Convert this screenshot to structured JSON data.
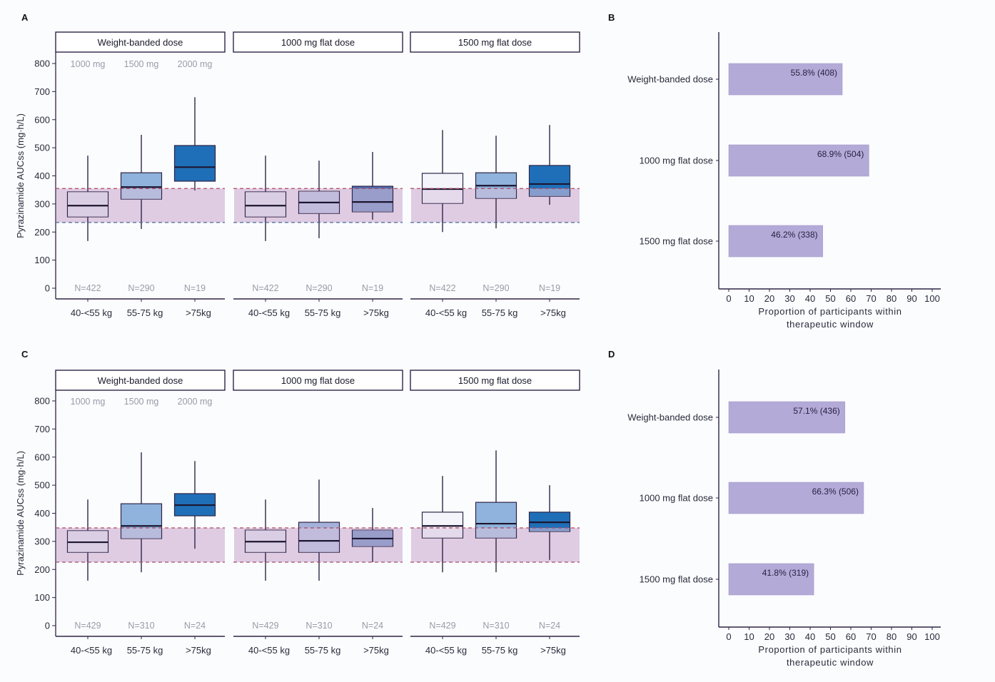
{
  "chart_data": [
    {
      "panel": "A",
      "type": "box",
      "ylabel": "Pyrazinamide AUCss (mg·h/L)",
      "ylim": [
        0,
        800
      ],
      "yticks": [
        0,
        100,
        200,
        300,
        400,
        500,
        600,
        700,
        800
      ],
      "therapeutic_window": [
        234,
        355
      ],
      "facets": [
        {
          "title": "Weight-banded dose",
          "dose_labels": [
            "1000 mg",
            "1500 mg",
            "2000 mg"
          ],
          "categories": [
            "40-<55 kg",
            "55-75 kg",
            ">75kg"
          ],
          "n": [
            "N=422",
            "N=290",
            "N=19"
          ],
          "boxes": [
            {
              "low": 168,
              "q1": 254,
              "median": 294,
              "q3": 343,
              "high": 472
            },
            {
              "low": 211,
              "q1": 317,
              "median": 360,
              "q3": 411,
              "high": 546
            },
            {
              "low": 348,
              "q1": 381,
              "median": 431,
              "q3": 508,
              "high": 680
            }
          ]
        },
        {
          "title": "1000 mg flat dose",
          "dose_labels": [],
          "categories": [
            "40-<55 kg",
            "55-75 kg",
            ">75kg"
          ],
          "n": [
            "N=422",
            "N=290",
            "N=19"
          ],
          "boxes": [
            {
              "low": 168,
              "q1": 254,
              "median": 294,
              "q3": 343,
              "high": 472
            },
            {
              "low": 178,
              "q1": 266,
              "median": 305,
              "q3": 345,
              "high": 454
            },
            {
              "low": 244,
              "q1": 272,
              "median": 307,
              "q3": 363,
              "high": 485
            }
          ]
        },
        {
          "title": "1500 mg flat dose",
          "dose_labels": [],
          "categories": [
            "40-<55 kg",
            "55-75 kg",
            ">75kg"
          ],
          "n": [
            "N=422",
            "N=290",
            "N=19"
          ],
          "boxes": [
            {
              "low": 200,
              "q1": 302,
              "median": 353,
              "q3": 409,
              "high": 563
            },
            {
              "low": 213,
              "q1": 320,
              "median": 365,
              "q3": 411,
              "high": 543
            },
            {
              "low": 297,
              "q1": 327,
              "median": 371,
              "q3": 437,
              "high": 581
            }
          ]
        }
      ]
    },
    {
      "panel": "B",
      "type": "bar",
      "orientation": "horizontal",
      "categories": [
        "Weight-banded dose",
        "1000 mg flat dose",
        "1500 mg flat dose"
      ],
      "values": [
        55.8,
        68.9,
        46.2
      ],
      "labels": [
        "55.8% (408)",
        "68.9% (504)",
        "46.2% (338)"
      ],
      "xlim": [
        0,
        100
      ],
      "xticks": [
        0,
        10,
        20,
        30,
        40,
        50,
        60,
        70,
        80,
        90,
        100
      ],
      "xlabel": [
        "Proportion of participants within",
        "therapeutic window"
      ]
    },
    {
      "panel": "C",
      "type": "box",
      "ylabel": "Pyrazinamide AUCss (mg·h/L)",
      "ylim": [
        0,
        800
      ],
      "yticks": [
        0,
        100,
        200,
        300,
        400,
        500,
        600,
        700,
        800
      ],
      "therapeutic_window": [
        226,
        348
      ],
      "facets": [
        {
          "title": "Weight-banded dose",
          "dose_labels": [
            "1000 mg",
            "1500 mg",
            "2000 mg"
          ],
          "categories": [
            "40-<55 kg",
            "55-75 kg",
            ">75kg"
          ],
          "n": [
            "N=429",
            "N=310",
            "N=24"
          ],
          "boxes": [
            {
              "low": 160,
              "q1": 261,
              "median": 297,
              "q3": 338,
              "high": 449
            },
            {
              "low": 190,
              "q1": 310,
              "median": 355,
              "q3": 434,
              "high": 617
            },
            {
              "low": 274,
              "q1": 391,
              "median": 429,
              "q3": 470,
              "high": 586
            }
          ]
        },
        {
          "title": "1000 mg flat dose",
          "dose_labels": [],
          "categories": [
            "40-<55 kg",
            "55-75 kg",
            ">75kg"
          ],
          "n": [
            "N=429",
            "N=310",
            "N=24"
          ],
          "boxes": [
            {
              "low": 160,
              "q1": 261,
              "median": 299,
              "q3": 340,
              "high": 449
            },
            {
              "low": 160,
              "q1": 261,
              "median": 302,
              "q3": 368,
              "high": 520
            },
            {
              "low": 226,
              "q1": 282,
              "median": 310,
              "q3": 340,
              "high": 419
            }
          ]
        },
        {
          "title": "1500 mg flat dose",
          "dose_labels": [],
          "categories": [
            "40-<55 kg",
            "55-75 kg",
            ">75kg"
          ],
          "n": [
            "N=429",
            "N=310",
            "N=24"
          ],
          "boxes": [
            {
              "low": 190,
              "q1": 312,
              "median": 355,
              "q3": 404,
              "high": 533
            },
            {
              "low": 190,
              "q1": 312,
              "median": 363,
              "q3": 439,
              "high": 624
            },
            {
              "low": 234,
              "q1": 335,
              "median": 368,
              "q3": 404,
              "high": 500
            }
          ]
        }
      ]
    },
    {
      "panel": "D",
      "type": "bar",
      "orientation": "horizontal",
      "categories": [
        "Weight-banded dose",
        "1000 mg flat dose",
        "1500 mg flat dose"
      ],
      "values": [
        57.1,
        66.3,
        41.8
      ],
      "labels": [
        "57.1% (436)",
        "66.3% (506)",
        "41.8% (319)"
      ],
      "xlim": [
        0,
        100
      ],
      "xticks": [
        0,
        10,
        20,
        30,
        40,
        50,
        60,
        70,
        80,
        90,
        100
      ],
      "xlabel": [
        "Proportion of participants within",
        "therapeutic window"
      ]
    }
  ],
  "colors": {
    "box_fills": {
      "Weight-banded dose": [
        "#dcdcec",
        "#8fb3dc",
        "#1f6fb8"
      ],
      "1000 mg flat dose": [
        "#dcdcec",
        "#a4b2da",
        "#4a6fb2"
      ],
      "1500 mg flat dose": [
        "#f3f5fa",
        "#8fb3dc",
        "#1f6fb8"
      ]
    },
    "window_band": "#d9c3de",
    "bar_fill": "#b4aad8",
    "outline": "#2e2546"
  }
}
